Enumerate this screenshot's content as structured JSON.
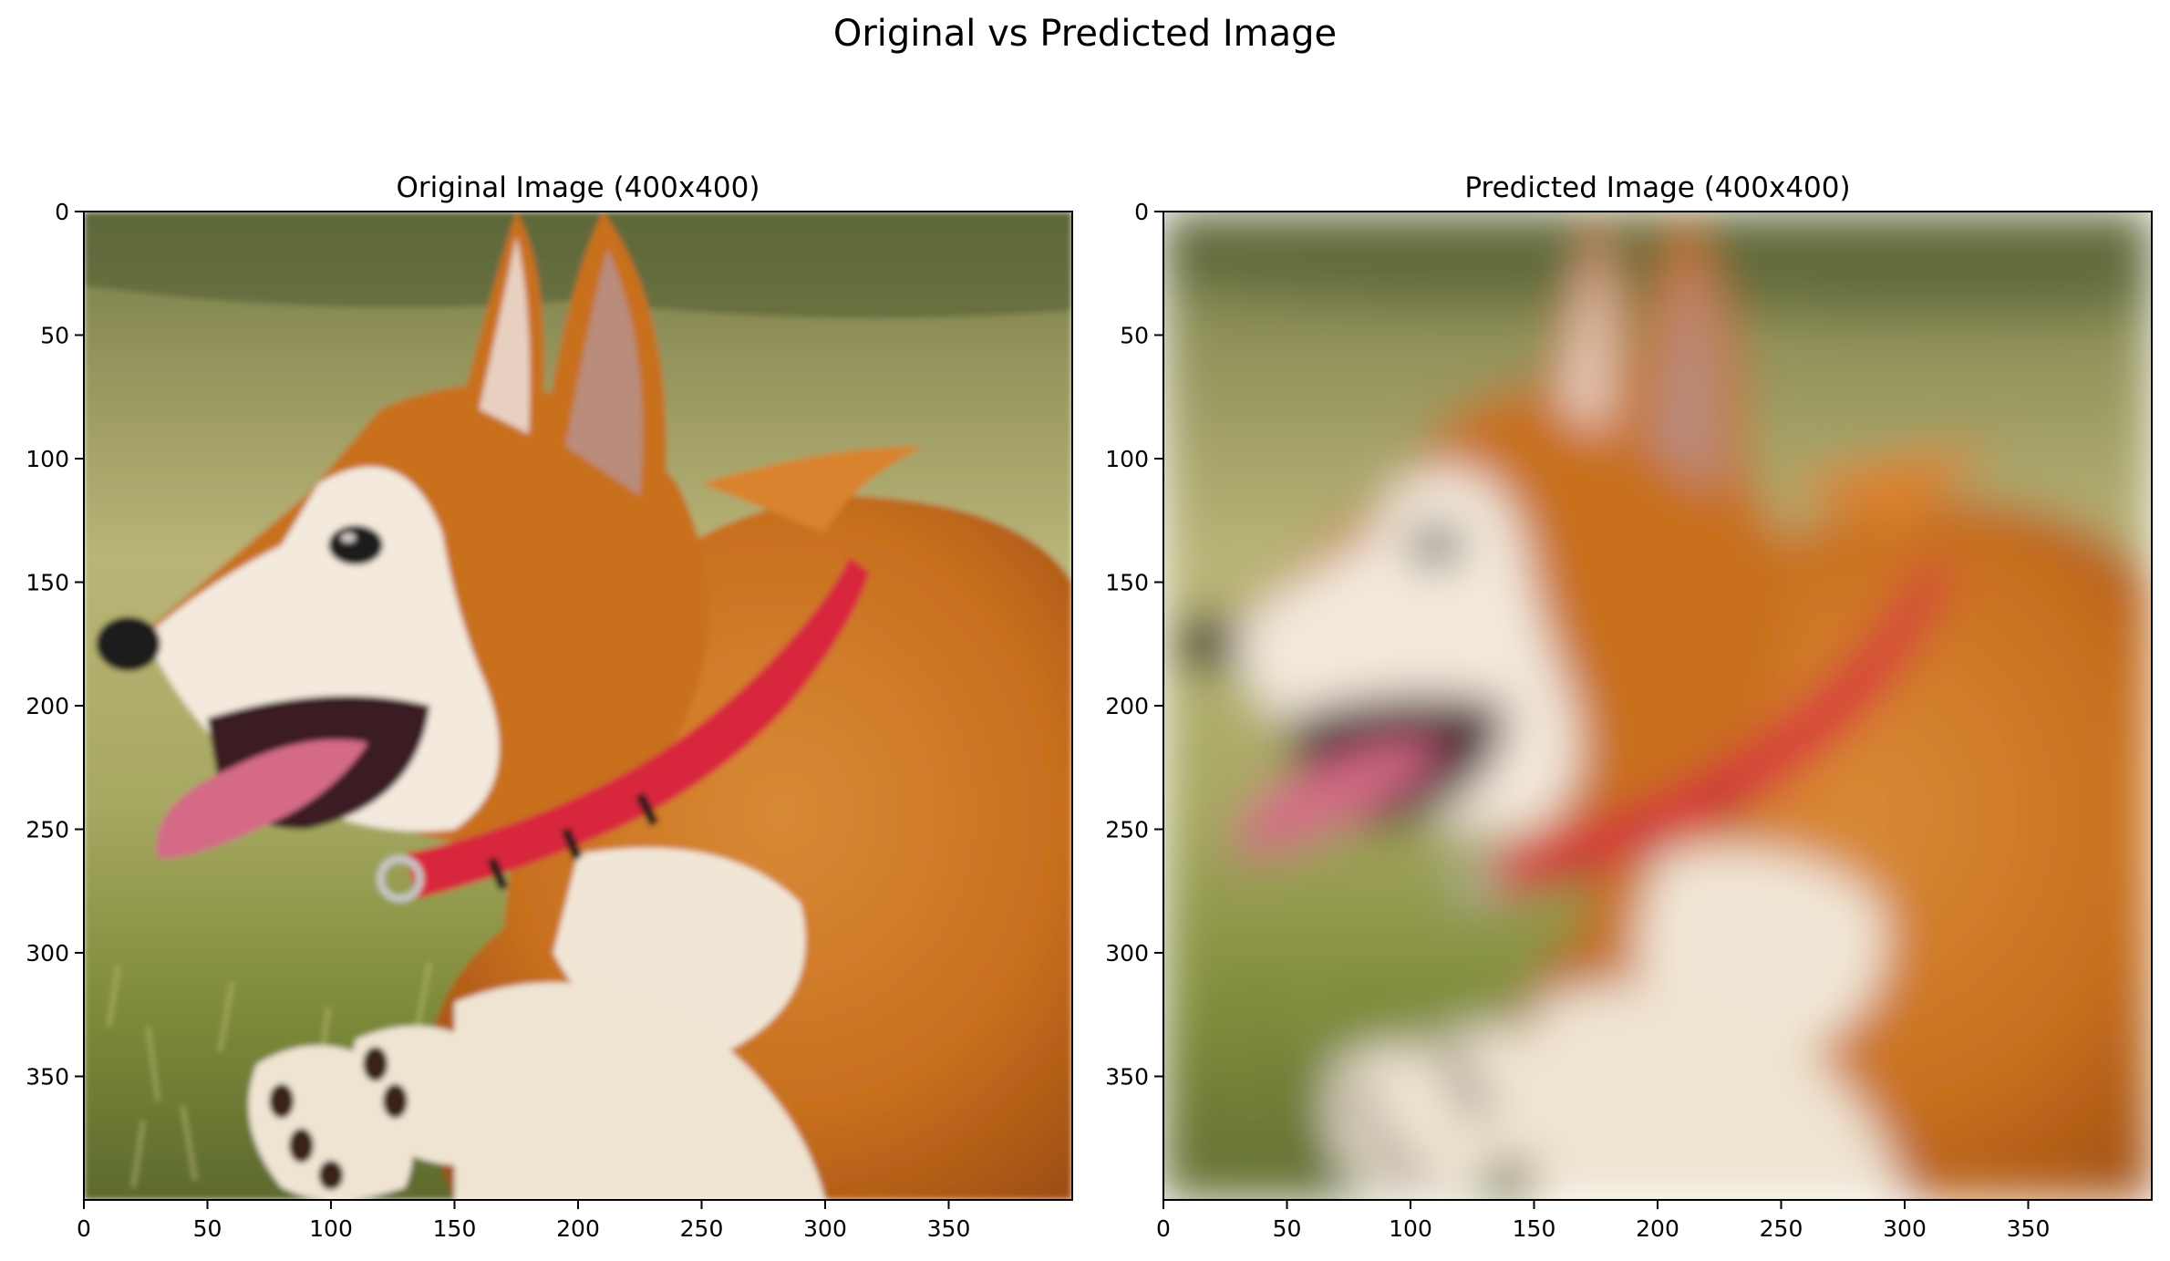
{
  "figure": {
    "suptitle": "Original vs Predicted Image"
  },
  "panels": [
    {
      "title": "Original Image (400x400)",
      "picture": "corgi-photo-sharp"
    },
    {
      "title": "Predicted Image (400x400)",
      "picture": "corgi-photo-blurred"
    }
  ],
  "axes": {
    "x_ticks": [
      "0",
      "50",
      "100",
      "150",
      "200",
      "250",
      "300",
      "350"
    ],
    "y_ticks": [
      "0",
      "50",
      "100",
      "150",
      "200",
      "250",
      "300",
      "350"
    ],
    "range": [
      0,
      400
    ]
  },
  "colors": {
    "grass_light": "#b9b477",
    "grass_mid": "#8e9a4a",
    "grass_dark": "#5d6a2e",
    "fur_orange": "#c8701f",
    "fur_deep": "#9e4d12",
    "fur_white": "#f1e6d6",
    "ear_inner": "#b98c7c",
    "nose": "#1d1a1a",
    "tongue": "#d46a86",
    "mouth": "#3a1c22",
    "collar": "#d8273d"
  }
}
